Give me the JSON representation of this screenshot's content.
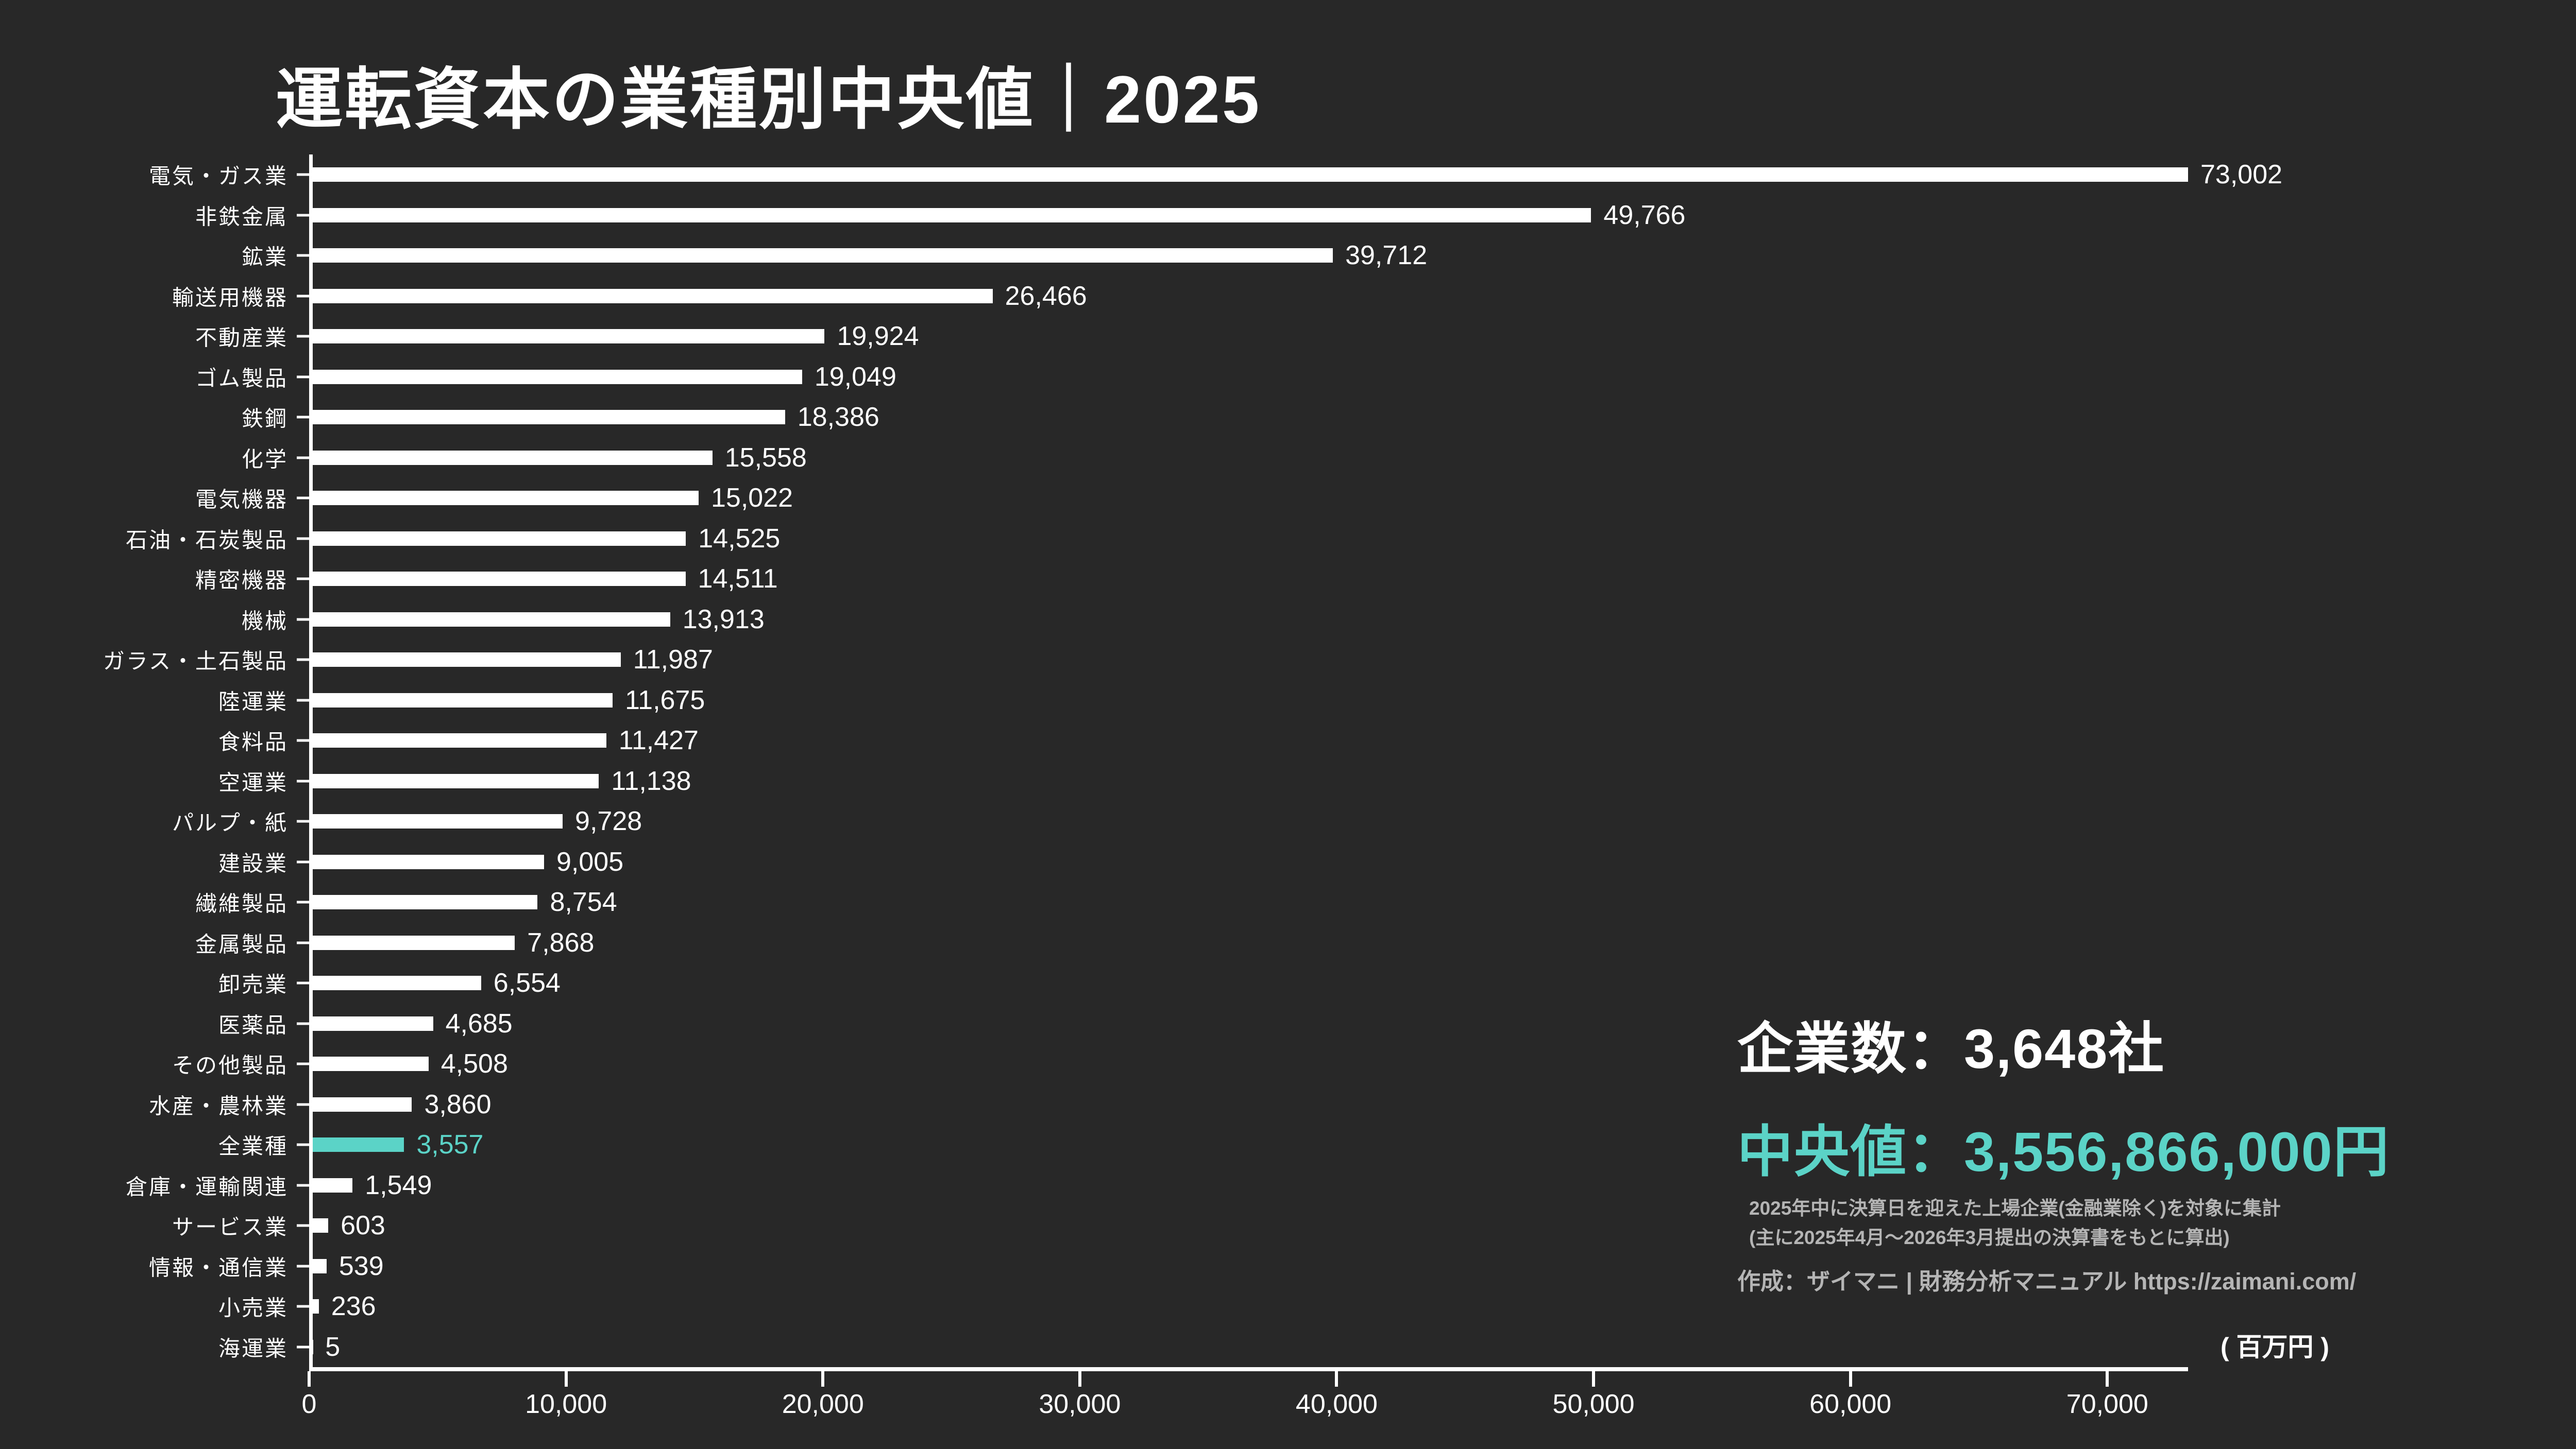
{
  "title": "運転資本の業種別中央値｜2025",
  "chart_data": {
    "type": "bar",
    "orientation": "horizontal",
    "title": "運転資本の業種別中央値｜2025",
    "unit_label": "( 百万円 )",
    "x_max": 73002,
    "x_ticks": [
      0,
      10000,
      20000,
      30000,
      40000,
      50000,
      60000,
      70000
    ],
    "grid": false,
    "categories": [
      "電気・ガス業",
      "非鉄金属",
      "鉱業",
      "輸送用機器",
      "不動産業",
      "ゴム製品",
      "鉄鋼",
      "化学",
      "電気機器",
      "石油・石炭製品",
      "精密機器",
      "機械",
      "ガラス・土石製品",
      "陸運業",
      "食料品",
      "空運業",
      "パルプ・紙",
      "建設業",
      "繊維製品",
      "金属製品",
      "卸売業",
      "医薬品",
      "その他製品",
      "水産・農林業",
      "全業種",
      "倉庫・運輸関連",
      "サービス業",
      "情報・通信業",
      "小売業",
      "海運業"
    ],
    "values": [
      73002,
      49766,
      39712,
      26466,
      19924,
      19049,
      18386,
      15558,
      15022,
      14525,
      14511,
      13913,
      11987,
      11675,
      11427,
      11138,
      9728,
      9005,
      8754,
      7868,
      6554,
      4685,
      4508,
      3860,
      3557,
      1549,
      603,
      539,
      236,
      5
    ],
    "highlight_category": "全業種",
    "highlight_value": 3557,
    "bar_color": "#ffffff",
    "highlight_color": "#5bd3c7",
    "background_color": "#282828",
    "text_color": "#ffffff",
    "muted_text_color": "#b5b5b5"
  },
  "stats": {
    "companies_line": "企業数：3,648社",
    "median_line": "中央値：3,556,866,000円"
  },
  "footnotes": {
    "line1": "2025年中に決算日を迎えた上場企業(金融業除く)を対象に集計",
    "line2": "(主に2025年4月～2026年3月提出の決算書をもとに算出)",
    "credit": "作成：ザイマニ | 財務分析マニュアル https://zaimani.com/"
  }
}
